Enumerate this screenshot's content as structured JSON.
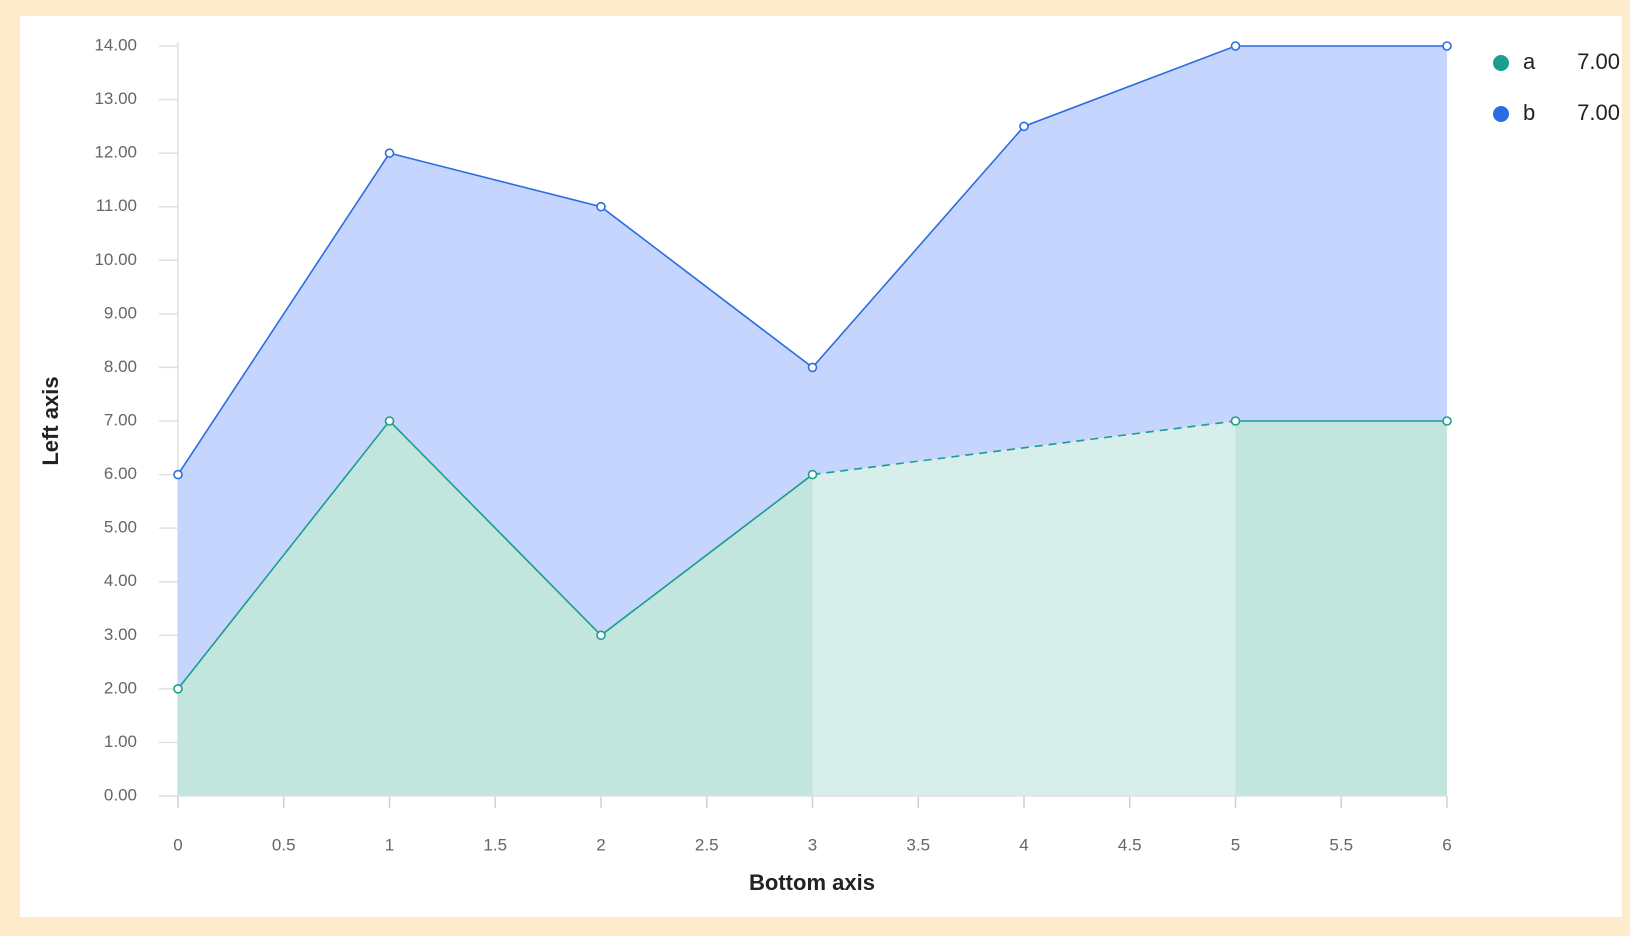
{
  "chart_data": {
    "type": "stacked-area",
    "x": [
      0,
      1,
      2,
      3,
      4,
      5,
      6
    ],
    "series": [
      {
        "name": "a",
        "color": "#1a9e8f",
        "fill": "#c2e5de",
        "gap_fill": "#d8eeea",
        "values": [
          2,
          7,
          3,
          6,
          null,
          7,
          7
        ],
        "value_labels": [
          null,
          null,
          null,
          null,
          null,
          null,
          "7.00"
        ]
      },
      {
        "name": "b",
        "color": "#2b6de0",
        "fill": "#c5d5fd",
        "values": [
          4,
          5,
          8,
          2,
          6,
          7,
          7
        ],
        "value_labels": [
          null,
          null,
          null,
          null,
          null,
          null,
          "7.00"
        ]
      }
    ],
    "xlabel": "Bottom axis",
    "ylabel": "Left axis",
    "xlim": [
      0,
      6
    ],
    "ylim": [
      0,
      14
    ],
    "xticks": [
      0,
      0.5,
      1,
      1.5,
      2,
      2.5,
      3,
      3.5,
      4,
      4.5,
      5,
      5.5,
      6
    ],
    "yticks": [
      {
        "value": 0,
        "label": "0.00"
      },
      {
        "value": 1,
        "label": "1.00"
      },
      {
        "value": 2,
        "label": "2.00"
      },
      {
        "value": 3,
        "label": "3.00"
      },
      {
        "value": 4,
        "label": "4.00"
      },
      {
        "value": 5,
        "label": "5.00"
      },
      {
        "value": 6,
        "label": "6.00"
      },
      {
        "value": 7,
        "label": "7.00"
      },
      {
        "value": 8,
        "label": "8.00"
      },
      {
        "value": 9,
        "label": "9.00"
      },
      {
        "value": 10,
        "label": "10.00"
      },
      {
        "value": 11,
        "label": "11.00"
      },
      {
        "value": 12,
        "label": "12.00"
      },
      {
        "value": 13,
        "label": "13.00"
      },
      {
        "value": 14,
        "label": "14.00"
      }
    ],
    "legend_position": "top-right"
  }
}
